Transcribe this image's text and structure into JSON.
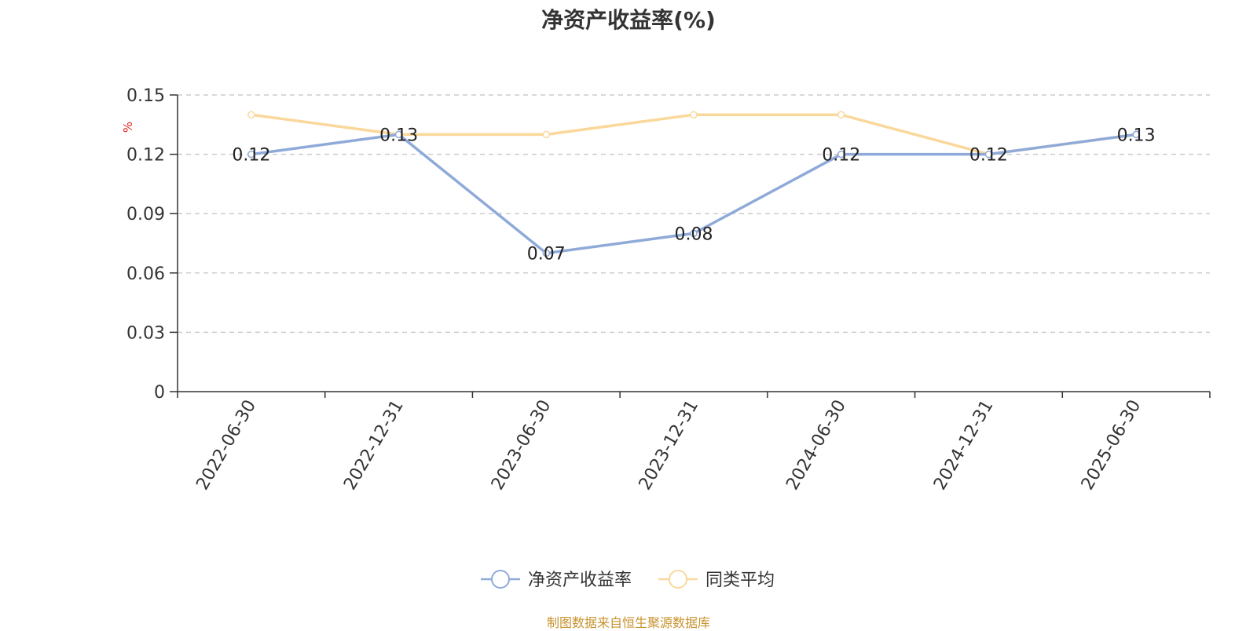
{
  "title": "净资产收益率(%)",
  "source_note": "制图数据来自恒生聚源数据库",
  "colors": {
    "series_roe": "#8faad9",
    "series_avg": "#fad89b",
    "unit_label": "#e02020",
    "credit": "#c8932f",
    "axis": "#333333",
    "grid": "#cccccc"
  },
  "chart_data": {
    "type": "line",
    "title": "净资产收益率(%)",
    "ylabel": "%",
    "xlabel": "",
    "ylim": [
      0,
      0.15
    ],
    "yticks": [
      "0",
      "0.03",
      "0.06",
      "0.09",
      "0.12",
      "0.15"
    ],
    "ytick_values": [
      0,
      0.03,
      0.06,
      0.09,
      0.12,
      0.15
    ],
    "grid": true,
    "legend": "bottom-center",
    "categories": [
      "2022-06-30",
      "2022-12-31",
      "2023-06-30",
      "2023-12-31",
      "2024-06-30",
      "2024-12-31",
      "2025-06-30"
    ],
    "series": [
      {
        "name": "净资产收益率",
        "color_key": "series_roe",
        "values": [
          0.12,
          0.13,
          0.07,
          0.08,
          0.12,
          0.12,
          0.13
        ],
        "labels": [
          "0.12",
          "0.13",
          "0.07",
          "0.08",
          "0.12",
          "0.12",
          "0.13"
        ]
      },
      {
        "name": "同类平均",
        "color_key": "series_avg",
        "values": [
          0.14,
          0.13,
          0.13,
          0.14,
          0.14,
          0.12,
          0.13
        ]
      }
    ]
  }
}
